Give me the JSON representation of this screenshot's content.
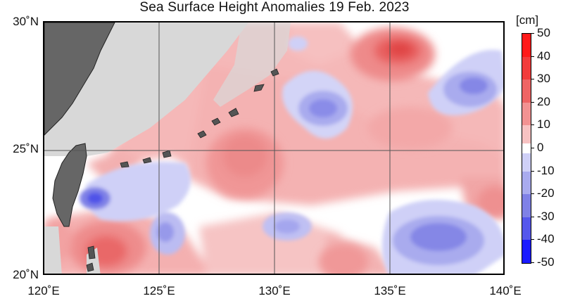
{
  "title": "Sea Surface Height Anomalies  19 Feb. 2023",
  "lat_labels": [
    "30˚N",
    "25˚N",
    "20˚N"
  ],
  "lon_labels": [
    "120˚E",
    "125˚E",
    "130˚E",
    "135˚E",
    "140˚E"
  ],
  "colorbar": {
    "unit": "[cm]",
    "labels": [
      "50",
      "40",
      "30",
      "20",
      "10",
      "0",
      "-10",
      "-20",
      "-30",
      "-40",
      "-50"
    ],
    "colors": [
      "#ff1a1a",
      "#f23c3c",
      "#ee6464",
      "#f29292",
      "#f7c2c2",
      "#ffffff",
      "#cfd0f7",
      "#a9abee",
      "#7f81e6",
      "#5557ec",
      "#1a1aff"
    ]
  },
  "map_colors": {
    "ocean_neutral": "#ffffff",
    "land": "#666666",
    "land_outline": "#222222",
    "no_data": "#d8d8d8",
    "grid": "#555555"
  }
}
